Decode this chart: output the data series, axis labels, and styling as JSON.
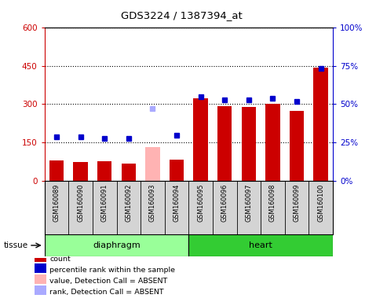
{
  "title": "GDS3224 / 1387394_at",
  "samples": [
    "GSM160089",
    "GSM160090",
    "GSM160091",
    "GSM160092",
    "GSM160093",
    "GSM160094",
    "GSM160095",
    "GSM160096",
    "GSM160097",
    "GSM160098",
    "GSM160099",
    "GSM160100"
  ],
  "bar_values": [
    80,
    76,
    78,
    68,
    133,
    83,
    322,
    292,
    288,
    300,
    275,
    443
  ],
  "bar_colors": [
    "#cc0000",
    "#cc0000",
    "#cc0000",
    "#cc0000",
    "#ffb3b3",
    "#cc0000",
    "#cc0000",
    "#cc0000",
    "#cc0000",
    "#cc0000",
    "#cc0000",
    "#cc0000"
  ],
  "rank_values": [
    29,
    29,
    28,
    28,
    47,
    30,
    55,
    53,
    53,
    54,
    52,
    73
  ],
  "rank_is_absent": [
    false,
    false,
    false,
    false,
    true,
    false,
    false,
    false,
    false,
    false,
    false,
    false
  ],
  "rank_color_normal": "#0000cc",
  "rank_color_absent": "#aaaaff",
  "ylim_left": [
    0,
    600
  ],
  "ylim_right": [
    0,
    100
  ],
  "yticks_left": [
    0,
    150,
    300,
    450,
    600
  ],
  "yticks_right": [
    0,
    25,
    50,
    75,
    100
  ],
  "ytick_labels_left": [
    "0",
    "150",
    "300",
    "450",
    "600"
  ],
  "ytick_labels_right": [
    "0%",
    "25%",
    "50%",
    "75%",
    "100%"
  ],
  "tissue_groups": [
    {
      "label": "diaphragm",
      "start": 0,
      "end": 6,
      "color": "#99ff99"
    },
    {
      "label": "heart",
      "start": 6,
      "end": 12,
      "color": "#33cc33"
    }
  ],
  "legend_items": [
    {
      "label": "count",
      "color": "#cc0000"
    },
    {
      "label": "percentile rank within the sample",
      "color": "#0000cc"
    },
    {
      "label": "value, Detection Call = ABSENT",
      "color": "#ffb3b3"
    },
    {
      "label": "rank, Detection Call = ABSENT",
      "color": "#aaaaff"
    }
  ],
  "tissue_label": "tissue",
  "left_axis_color": "#cc0000",
  "right_axis_color": "#0000cc",
  "sample_bg_color": "#d4d4d4",
  "plot_bg_color": "#ffffff"
}
